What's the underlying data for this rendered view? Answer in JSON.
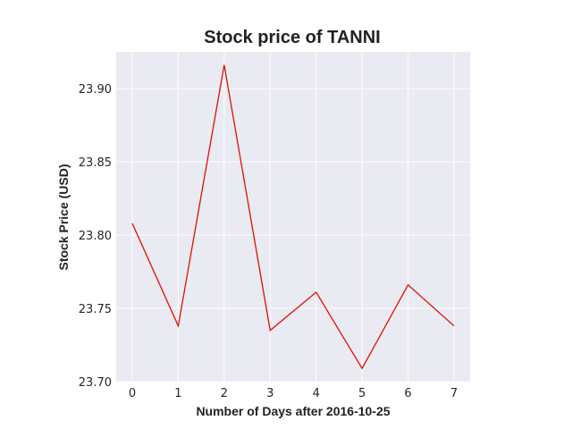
{
  "chart_data": {
    "type": "line",
    "title": "Stock price of TANNI",
    "xlabel": "Number of Days after 2016-10-25",
    "ylabel": "Stock Price (USD)",
    "x": [
      0,
      1,
      2,
      3,
      4,
      5,
      6,
      7
    ],
    "series": [
      {
        "values": [
          23.808,
          23.738,
          23.916,
          23.735,
          23.761,
          23.709,
          23.766,
          23.738
        ]
      }
    ],
    "xticks": [
      "0",
      "1",
      "2",
      "3",
      "4",
      "5",
      "6",
      "7"
    ],
    "yticks": [
      "23.70",
      "23.75",
      "23.80",
      "23.85",
      "23.90"
    ],
    "xlim": [
      -0.35,
      7.35
    ],
    "ylim": [
      23.7,
      23.925
    ],
    "grid": true,
    "line_color": "#dd1100",
    "plot_background": "#eaeaf2",
    "grid_color": "#ffffff"
  }
}
